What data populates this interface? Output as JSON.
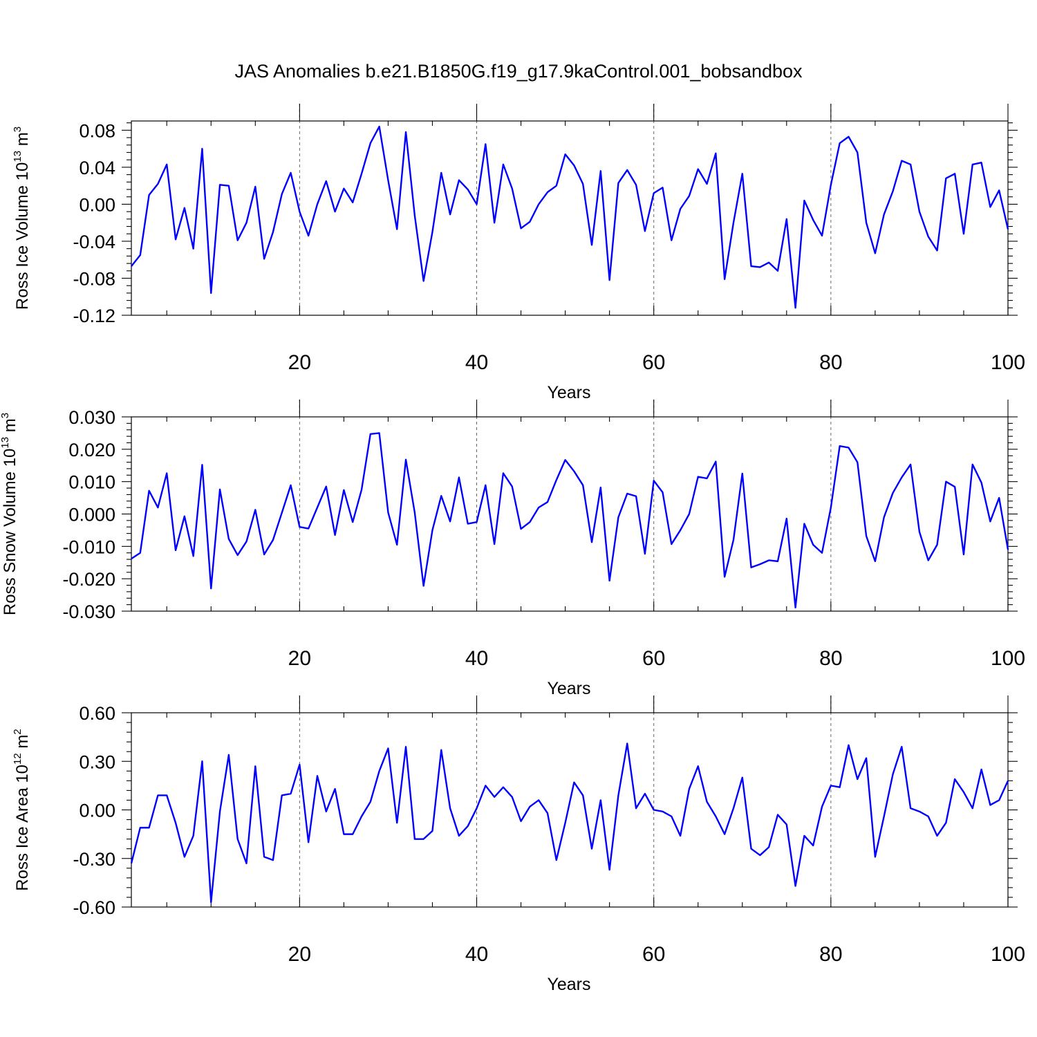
{
  "figure": {
    "title": "JAS Anomalies b.e21.B1850G.f19_g17.9kaControl.001_bobsandbox"
  },
  "colors": {
    "series": "#0000ff",
    "axes": "#000000",
    "background": "#ffffff"
  },
  "chart_data": [
    {
      "type": "line",
      "name": "ice-volume",
      "ylabel_main": "Ross Ice Volume 10",
      "ylabel_exp": "13",
      "ylabel_unit": " m",
      "ylabel_unit_exp": "3",
      "xlabel": "Years",
      "xlim": [
        1,
        100
      ],
      "ylim": [
        -0.12,
        0.09
      ],
      "xticks": [
        20,
        40,
        60,
        80,
        100
      ],
      "xtick_labels": [
        "20",
        "40",
        "60",
        "80",
        "100"
      ],
      "yticks": [
        -0.12,
        -0.08,
        -0.04,
        0.0,
        0.04,
        0.08
      ],
      "ytick_labels": [
        "-0.12",
        "-0.08",
        "-0.04",
        "0.00",
        "0.04",
        "0.08"
      ],
      "grid": "vertical dashed at x ticks",
      "x_start": 1,
      "values": [
        -0.067,
        -0.055,
        0.01,
        0.022,
        0.043,
        -0.038,
        -0.004,
        -0.048,
        0.06,
        -0.096,
        0.021,
        0.02,
        -0.039,
        -0.02,
        0.019,
        -0.059,
        -0.03,
        0.011,
        0.034,
        -0.008,
        -0.034,
        0.0,
        0.025,
        -0.008,
        0.017,
        0.002,
        0.033,
        0.066,
        0.084,
        0.026,
        -0.027,
        0.078,
        -0.012,
        -0.083,
        -0.03,
        0.034,
        -0.011,
        0.026,
        0.016,
        0.0,
        0.065,
        -0.02,
        0.043,
        0.017,
        -0.026,
        -0.019,
        0.0,
        0.013,
        0.02,
        0.054,
        0.042,
        0.022,
        -0.044,
        0.036,
        -0.082,
        0.023,
        0.037,
        0.021,
        -0.029,
        0.012,
        0.018,
        -0.039,
        -0.005,
        0.009,
        0.038,
        0.022,
        0.055,
        -0.081,
        -0.02,
        0.033,
        -0.067,
        -0.068,
        -0.063,
        -0.072,
        -0.016,
        -0.112,
        0.004,
        -0.017,
        -0.034,
        0.021,
        0.066,
        0.073,
        0.056,
        -0.02,
        -0.053,
        -0.011,
        0.014,
        0.047,
        0.043,
        -0.008,
        -0.035,
        -0.05,
        0.028,
        0.033,
        -0.032,
        0.043,
        0.045,
        -0.003,
        0.015,
        -0.027
      ]
    },
    {
      "type": "line",
      "name": "snow-volume",
      "ylabel_main": "Ross Snow Volume 10",
      "ylabel_exp": "13",
      "ylabel_unit": " m",
      "ylabel_unit_exp": "3",
      "xlabel": "Years",
      "xlim": [
        1,
        100
      ],
      "ylim": [
        -0.03,
        0.03
      ],
      "xticks": [
        20,
        40,
        60,
        80,
        100
      ],
      "xtick_labels": [
        "20",
        "40",
        "60",
        "80",
        "100"
      ],
      "yticks": [
        -0.03,
        -0.02,
        -0.01,
        0.0,
        0.01,
        0.02,
        0.03
      ],
      "ytick_labels": [
        "-0.030",
        "-0.020",
        "-0.010",
        "0.000",
        "0.010",
        "0.020",
        "0.030"
      ],
      "grid": "vertical dashed at x ticks",
      "x_start": 1,
      "values": [
        -0.0138,
        -0.012,
        0.0072,
        0.002,
        0.0126,
        -0.0112,
        -0.0007,
        -0.013,
        0.0152,
        -0.023,
        0.0076,
        -0.0077,
        -0.0127,
        -0.0085,
        0.0013,
        -0.0125,
        -0.008,
        0.0004,
        0.0089,
        -0.004,
        -0.0045,
        0.002,
        0.0085,
        -0.0065,
        0.0074,
        -0.0025,
        0.0075,
        0.0247,
        0.025,
        0.0005,
        -0.0095,
        0.0168,
        0.0005,
        -0.0222,
        -0.005,
        0.0056,
        -0.0023,
        0.0113,
        -0.003,
        -0.0025,
        0.0089,
        -0.0093,
        0.0126,
        0.0085,
        -0.0046,
        -0.0025,
        0.002,
        0.0037,
        0.0105,
        0.0167,
        0.0132,
        0.0089,
        -0.0087,
        0.0082,
        -0.0206,
        -0.001,
        0.0063,
        0.0055,
        -0.0123,
        0.0103,
        0.0067,
        -0.0093,
        -0.005,
        0.0,
        0.0115,
        0.011,
        0.0162,
        -0.0194,
        -0.008,
        0.0125,
        -0.0165,
        -0.0155,
        -0.0143,
        -0.0146,
        -0.0014,
        -0.0289,
        -0.003,
        -0.0095,
        -0.012,
        0.002,
        0.021,
        0.0205,
        0.016,
        -0.0068,
        -0.0146,
        -0.001,
        0.0065,
        0.0113,
        0.0153,
        -0.0055,
        -0.0143,
        -0.0095,
        0.01,
        0.0084,
        -0.0125,
        0.0153,
        0.0097,
        -0.0023,
        0.005,
        -0.011
      ]
    },
    {
      "type": "line",
      "name": "ice-area",
      "ylabel_main": "Ross Ice Area 10",
      "ylabel_exp": "12",
      "ylabel_unit": " m",
      "ylabel_unit_exp": "2",
      "xlabel": "Years",
      "xlim": [
        1,
        100
      ],
      "ylim": [
        -0.6,
        0.6
      ],
      "xticks": [
        20,
        40,
        60,
        80,
        100
      ],
      "xtick_labels": [
        "20",
        "40",
        "60",
        "80",
        "100"
      ],
      "yticks": [
        -0.6,
        -0.3,
        0.0,
        0.3,
        0.6
      ],
      "ytick_labels": [
        "-0.60",
        "-0.30",
        "0.00",
        "0.30",
        "0.60"
      ],
      "grid": "vertical dashed at x ticks",
      "x_start": 1,
      "values": [
        -0.33,
        -0.11,
        -0.11,
        0.09,
        0.09,
        -0.08,
        -0.29,
        -0.16,
        0.3,
        -0.57,
        -0.01,
        0.34,
        -0.18,
        -0.33,
        0.27,
        -0.29,
        -0.31,
        0.09,
        0.1,
        0.28,
        -0.2,
        0.21,
        -0.01,
        0.13,
        -0.15,
        -0.15,
        -0.04,
        0.05,
        0.24,
        0.38,
        -0.08,
        0.39,
        -0.18,
        -0.18,
        -0.13,
        0.37,
        0.01,
        -0.16,
        -0.1,
        0.01,
        0.15,
        0.08,
        0.14,
        0.08,
        -0.07,
        0.02,
        0.06,
        -0.02,
        -0.31,
        -0.08,
        0.17,
        0.09,
        -0.24,
        0.06,
        -0.37,
        0.09,
        0.41,
        0.01,
        0.1,
        0.0,
        -0.01,
        -0.04,
        -0.16,
        0.13,
        0.27,
        0.05,
        -0.04,
        -0.15,
        0.01,
        0.2,
        -0.24,
        -0.28,
        -0.23,
        -0.03,
        -0.09,
        -0.47,
        -0.16,
        -0.22,
        0.02,
        0.15,
        0.14,
        0.4,
        0.19,
        0.32,
        -0.29,
        -0.04,
        0.22,
        0.39,
        0.01,
        -0.01,
        -0.04,
        -0.16,
        -0.08,
        0.19,
        0.11,
        0.01,
        0.25,
        0.03,
        0.06,
        0.18
      ]
    }
  ]
}
